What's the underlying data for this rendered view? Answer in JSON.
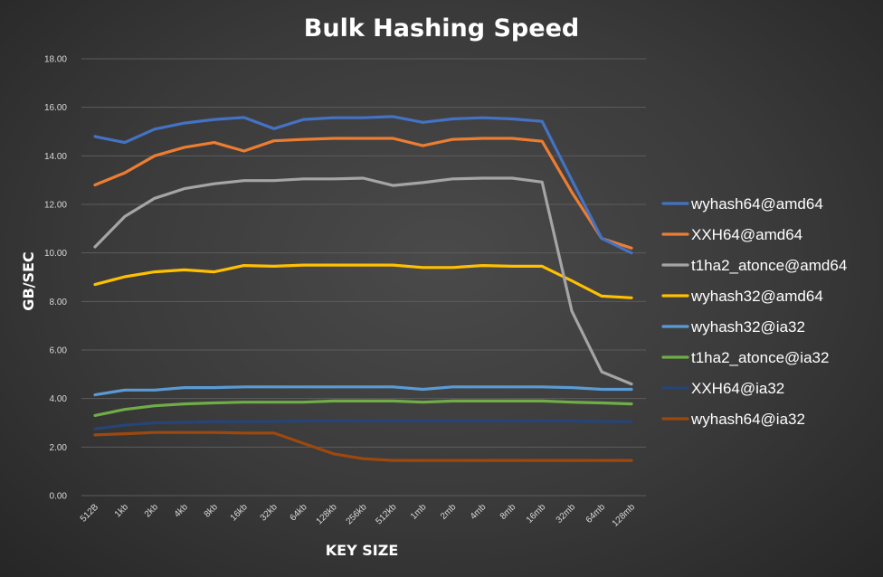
{
  "chart_data": {
    "type": "line",
    "title": "Bulk Hashing Speed",
    "xlabel": "KEY SIZE",
    "ylabel": "GB/SEC",
    "ylim": [
      0,
      18
    ],
    "yticks": [
      "0.00",
      "2.00",
      "4.00",
      "6.00",
      "8.00",
      "10.00",
      "12.00",
      "14.00",
      "16.00",
      "18.00"
    ],
    "grid": true,
    "legend": "right",
    "categories": [
      "512B",
      "1kb",
      "2kb",
      "4kb",
      "8kb",
      "16kb",
      "32kb",
      "64kb",
      "128kb",
      "256kb",
      "512kb",
      "1mb",
      "2mb",
      "4mb",
      "8mb",
      "16mb",
      "32mb",
      "64mb",
      "128mb"
    ],
    "series": [
      {
        "name": "wyhash64@amd64",
        "color": "#4472c4",
        "values": [
          14.8,
          14.55,
          15.1,
          15.35,
          15.5,
          15.58,
          15.12,
          15.5,
          15.57,
          15.57,
          15.62,
          15.38,
          15.52,
          15.57,
          15.52,
          15.42,
          13.0,
          10.6,
          10.0
        ]
      },
      {
        "name": "XXH64@amd64",
        "color": "#ed7d31",
        "values": [
          12.8,
          13.3,
          14.0,
          14.35,
          14.55,
          14.2,
          14.62,
          14.68,
          14.72,
          14.72,
          14.72,
          14.42,
          14.68,
          14.72,
          14.72,
          14.6,
          12.5,
          10.6,
          10.2
        ]
      },
      {
        "name": "t1ha2_atonce@amd64",
        "color": "#a5a5a5",
        "values": [
          10.25,
          11.5,
          12.25,
          12.65,
          12.85,
          12.98,
          12.98,
          13.05,
          13.05,
          13.08,
          12.78,
          12.9,
          13.05,
          13.08,
          13.08,
          12.92,
          7.6,
          5.1,
          4.6
        ]
      },
      {
        "name": "wyhash32@amd64",
        "color": "#ffc000",
        "values": [
          8.7,
          9.02,
          9.22,
          9.3,
          9.22,
          9.48,
          9.45,
          9.5,
          9.5,
          9.5,
          9.5,
          9.4,
          9.4,
          9.48,
          9.45,
          9.45,
          8.85,
          8.22,
          8.15
        ]
      },
      {
        "name": "wyhash32@ia32",
        "color": "#5b9bd5",
        "values": [
          4.15,
          4.35,
          4.35,
          4.45,
          4.45,
          4.48,
          4.48,
          4.48,
          4.48,
          4.48,
          4.48,
          4.38,
          4.48,
          4.48,
          4.48,
          4.48,
          4.45,
          4.38,
          4.38
        ]
      },
      {
        "name": "t1ha2_atonce@ia32",
        "color": "#70ad47",
        "values": [
          3.3,
          3.55,
          3.7,
          3.78,
          3.82,
          3.85,
          3.85,
          3.85,
          3.9,
          3.9,
          3.9,
          3.85,
          3.9,
          3.9,
          3.9,
          3.9,
          3.85,
          3.82,
          3.78
        ]
      },
      {
        "name": "XXH64@ia32",
        "color": "#264478",
        "values": [
          2.75,
          2.9,
          3.0,
          3.02,
          3.05,
          3.05,
          3.05,
          3.08,
          3.08,
          3.08,
          3.08,
          3.08,
          3.08,
          3.08,
          3.08,
          3.08,
          3.08,
          3.05,
          3.05
        ]
      },
      {
        "name": "wyhash64@ia32",
        "color": "#9e480e",
        "values": [
          2.5,
          2.55,
          2.6,
          2.6,
          2.6,
          2.58,
          2.58,
          2.15,
          1.72,
          1.52,
          1.45,
          1.45,
          1.45,
          1.45,
          1.45,
          1.45,
          1.45,
          1.45,
          1.45
        ]
      }
    ]
  }
}
